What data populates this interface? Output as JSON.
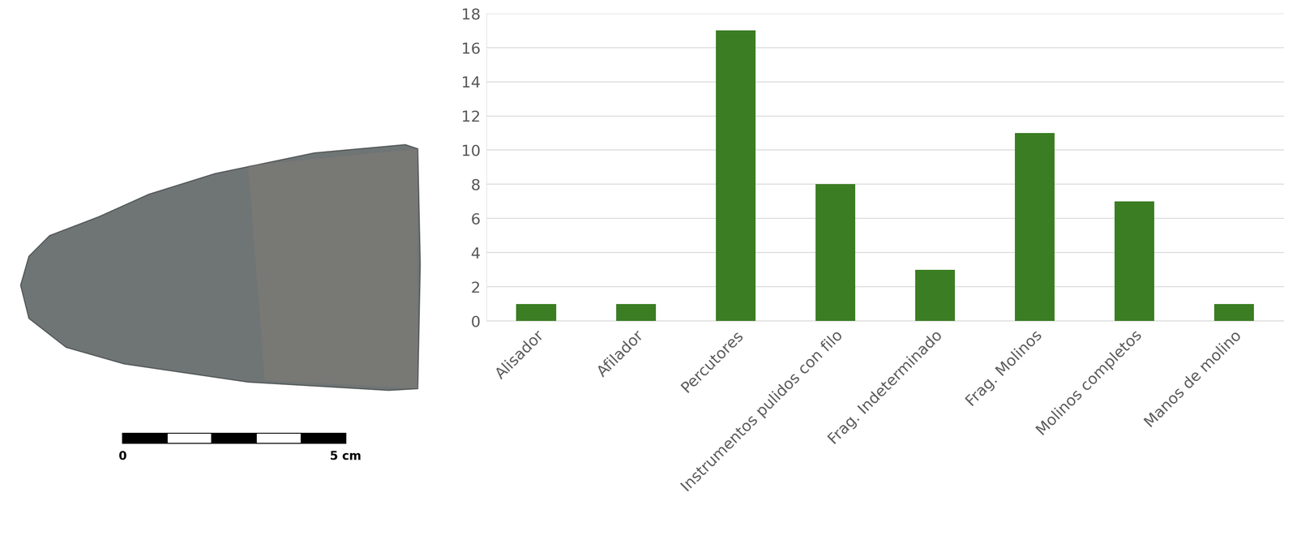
{
  "chart_data": {
    "type": "bar",
    "categories": [
      "Alisador",
      "Afilador",
      "Percutores",
      "Instrumentos pulidos con filo",
      "Frag. Indeterminado",
      "Frag. Molinos",
      "Molinos completos",
      "Manos de molino"
    ],
    "values": [
      1,
      1,
      17,
      8,
      3,
      11,
      7,
      1
    ],
    "color": "#3b7d23",
    "ylim": [
      0,
      18
    ],
    "yticks": [
      0,
      2,
      4,
      6,
      8,
      10,
      12,
      14,
      16,
      18
    ],
    "grid": true
  },
  "scale_bar": {
    "labels": [
      "0",
      "5 cm"
    ]
  }
}
